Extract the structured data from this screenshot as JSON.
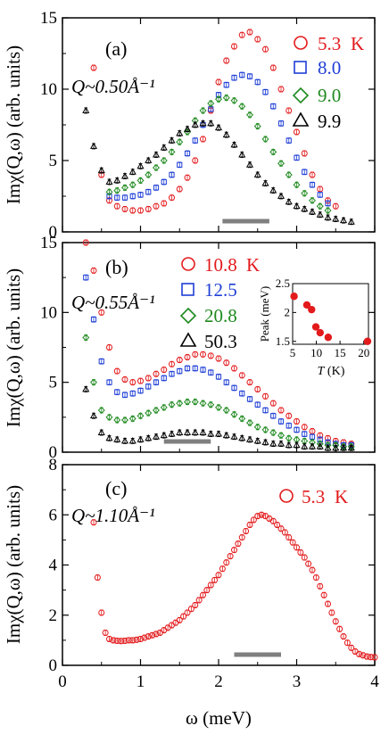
{
  "colors": {
    "red": "#e31a1c",
    "blue": "#1f3fd6",
    "green": "#1f8a1f",
    "black": "#000000",
    "bar": "#7f7f7f"
  },
  "chart_data": [
    {
      "type": "scatter",
      "panel": "(a)",
      "q_label": "Q~0.50Å⁻¹",
      "ylabel": "Imχ(Q,ω) (arb. units)",
      "xlabel": "",
      "xlim": [
        0,
        4
      ],
      "ylim": [
        0,
        15
      ],
      "x_ticks": [
        0,
        1,
        2,
        3,
        4
      ],
      "y_ticks": [
        0,
        5,
        10,
        15
      ],
      "y_tick_labels": [
        "0",
        "5",
        "10",
        "15"
      ],
      "legend_placement": "top-right",
      "legend_unit": "K",
      "resolution_bar": [
        2.05,
        2.65
      ],
      "series": [
        {
          "name": "5.3",
          "marker": "circle",
          "color": "red",
          "x": [
            0.4,
            0.5,
            0.6,
            0.7,
            0.8,
            0.9,
            1.0,
            1.1,
            1.2,
            1.3,
            1.4,
            1.5,
            1.6,
            1.7,
            1.8,
            1.9,
            2.0,
            2.1,
            2.2,
            2.3,
            2.4,
            2.5,
            2.6,
            2.7,
            2.8,
            2.9,
            3.0,
            3.1,
            3.2,
            3.3,
            3.4,
            3.5
          ],
          "y": [
            11.5,
            4.0,
            2.2,
            1.8,
            1.6,
            1.5,
            1.5,
            1.6,
            1.8,
            2.0,
            2.4,
            3.0,
            3.8,
            5.0,
            6.5,
            8.5,
            10.5,
            12.0,
            13.0,
            13.8,
            14.0,
            13.5,
            12.8,
            11.5,
            10.0,
            8.5,
            7.0,
            5.5,
            4.0,
            3.0,
            2.2,
            1.8
          ]
        },
        {
          "name": "8.0",
          "marker": "square",
          "color": "blue",
          "x": [
            0.6,
            0.7,
            0.8,
            0.9,
            1.0,
            1.1,
            1.2,
            1.3,
            1.4,
            1.5,
            1.6,
            1.7,
            1.8,
            1.9,
            2.0,
            2.1,
            2.2,
            2.3,
            2.4,
            2.5,
            2.6,
            2.7,
            2.8,
            2.9,
            3.0,
            3.1,
            3.2,
            3.3,
            3.4
          ],
          "y": [
            2.5,
            2.4,
            2.4,
            2.5,
            2.6,
            2.8,
            3.1,
            3.5,
            4.0,
            4.7,
            5.5,
            6.4,
            7.5,
            8.6,
            9.6,
            10.3,
            10.8,
            11.0,
            10.9,
            10.5,
            9.8,
            8.8,
            7.6,
            6.4,
            5.2,
            4.2,
            3.3,
            2.6,
            2.0
          ]
        },
        {
          "name": "9.0",
          "marker": "diamond",
          "color": "green",
          "x": [
            0.6,
            0.7,
            0.8,
            0.9,
            1.0,
            1.1,
            1.2,
            1.3,
            1.4,
            1.5,
            1.6,
            1.7,
            1.8,
            1.9,
            2.0,
            2.1,
            2.2,
            2.3,
            2.4,
            2.5,
            2.6,
            2.7,
            2.8,
            2.9,
            3.0,
            3.1,
            3.2,
            3.3,
            3.4
          ],
          "y": [
            2.8,
            2.9,
            3.1,
            3.3,
            3.6,
            4.0,
            4.5,
            5.0,
            5.6,
            6.3,
            7.0,
            7.8,
            8.5,
            9.0,
            9.3,
            9.4,
            9.2,
            8.8,
            8.2,
            7.4,
            6.5,
            5.6,
            4.8,
            4.0,
            3.3,
            2.7,
            2.2,
            1.8,
            1.5
          ]
        },
        {
          "name": "9.9",
          "marker": "triangle",
          "color": "black",
          "x": [
            0.3,
            0.4,
            0.5,
            0.6,
            0.7,
            0.8,
            0.9,
            1.0,
            1.1,
            1.2,
            1.3,
            1.4,
            1.5,
            1.6,
            1.7,
            1.8,
            1.9,
            2.0,
            2.1,
            2.2,
            2.3,
            2.4,
            2.5,
            2.6,
            2.7,
            2.8,
            2.9,
            3.0,
            3.1,
            3.2,
            3.3,
            3.4,
            3.5,
            3.6,
            3.7
          ],
          "y": [
            8.5,
            6.0,
            4.3,
            3.5,
            3.6,
            3.9,
            4.2,
            4.6,
            5.0,
            5.4,
            5.9,
            6.4,
            6.9,
            7.2,
            7.5,
            7.6,
            7.6,
            7.3,
            6.8,
            6.1,
            5.4,
            4.7,
            4.0,
            3.4,
            2.9,
            2.5,
            2.1,
            1.8,
            1.6,
            1.4,
            1.2,
            1.0,
            0.9,
            0.8,
            0.7
          ]
        }
      ]
    },
    {
      "type": "scatter",
      "panel": "(b)",
      "q_label": "Q~0.55Å⁻¹",
      "ylabel": "Imχ(Q,ω) (arb. units)",
      "xlabel": "",
      "xlim": [
        0,
        4
      ],
      "ylim": [
        0,
        15
      ],
      "x_ticks": [
        0,
        1,
        2,
        3,
        4
      ],
      "y_ticks": [
        0,
        5,
        10,
        15
      ],
      "y_tick_labels": [
        "0",
        "5",
        "10",
        "15"
      ],
      "legend_placement": "top-center",
      "legend_unit": "K",
      "resolution_bar": [
        1.3,
        1.9
      ],
      "series": [
        {
          "name": "10.8",
          "marker": "circle",
          "color": "red",
          "x": [
            0.3,
            0.4,
            0.5,
            0.6,
            0.7,
            0.8,
            0.9,
            1.0,
            1.1,
            1.2,
            1.3,
            1.4,
            1.5,
            1.6,
            1.7,
            1.8,
            1.9,
            2.0,
            2.1,
            2.2,
            2.3,
            2.4,
            2.5,
            2.6,
            2.7,
            2.8,
            2.9,
            3.0,
            3.1,
            3.2,
            3.3,
            3.4,
            3.5,
            3.6,
            3.7
          ],
          "y": [
            15.0,
            13.0,
            10.0,
            7.5,
            5.8,
            5.2,
            5.0,
            5.1,
            5.3,
            5.6,
            5.9,
            6.3,
            6.6,
            6.8,
            7.0,
            7.0,
            6.9,
            6.7,
            6.4,
            6.0,
            5.5,
            5.0,
            4.5,
            4.0,
            3.5,
            3.0,
            2.6,
            2.2,
            1.8,
            1.5,
            1.2,
            1.0,
            0.8,
            0.7,
            0.6
          ]
        },
        {
          "name": "12.5",
          "marker": "square",
          "color": "blue",
          "x": [
            0.3,
            0.4,
            0.5,
            0.6,
            0.7,
            0.8,
            0.9,
            1.0,
            1.1,
            1.2,
            1.3,
            1.4,
            1.5,
            1.6,
            1.7,
            1.8,
            1.9,
            2.0,
            2.1,
            2.2,
            2.3,
            2.4,
            2.5,
            2.6,
            2.7,
            2.8,
            2.9,
            3.0,
            3.1,
            3.2,
            3.3,
            3.4,
            3.5,
            3.6,
            3.7
          ],
          "y": [
            12.5,
            9.5,
            6.5,
            5.0,
            4.3,
            4.1,
            4.2,
            4.4,
            4.7,
            5.0,
            5.3,
            5.6,
            5.8,
            6.0,
            6.0,
            5.9,
            5.7,
            5.4,
            5.0,
            4.6,
            4.2,
            3.8,
            3.4,
            3.0,
            2.6,
            2.2,
            1.9,
            1.6,
            1.3,
            1.1,
            0.9,
            0.7,
            0.6,
            0.5,
            0.5
          ]
        },
        {
          "name": "20.8",
          "marker": "diamond",
          "color": "green",
          "x": [
            0.3,
            0.4,
            0.5,
            0.6,
            0.7,
            0.8,
            0.9,
            1.0,
            1.1,
            1.2,
            1.3,
            1.4,
            1.5,
            1.6,
            1.7,
            1.8,
            1.9,
            2.0,
            2.1,
            2.2,
            2.3,
            2.4,
            2.5,
            2.6,
            2.7,
            2.8,
            2.9,
            3.0,
            3.1,
            3.2,
            3.3,
            3.4,
            3.5,
            3.6,
            3.7
          ],
          "y": [
            8.2,
            5.0,
            3.0,
            2.5,
            2.3,
            2.3,
            2.4,
            2.6,
            2.8,
            3.0,
            3.2,
            3.4,
            3.5,
            3.6,
            3.6,
            3.5,
            3.4,
            3.2,
            3.0,
            2.7,
            2.4,
            2.1,
            1.8,
            1.6,
            1.4,
            1.2,
            1.0,
            0.9,
            0.8,
            0.7,
            0.6,
            0.5,
            0.5,
            0.4,
            0.4
          ]
        },
        {
          "name": "50.3",
          "marker": "triangle",
          "color": "black",
          "x": [
            0.3,
            0.4,
            0.5,
            0.6,
            0.7,
            0.8,
            0.9,
            1.0,
            1.1,
            1.2,
            1.3,
            1.4,
            1.5,
            1.6,
            1.7,
            1.8,
            1.9,
            2.0,
            2.1,
            2.2,
            2.3,
            2.4,
            2.5,
            2.6,
            2.7,
            2.8,
            2.9,
            3.0,
            3.1,
            3.2,
            3.3,
            3.4,
            3.5,
            3.6,
            3.7
          ],
          "y": [
            4.5,
            2.6,
            1.4,
            1.0,
            0.9,
            0.8,
            0.8,
            0.9,
            1.0,
            1.1,
            1.2,
            1.3,
            1.4,
            1.4,
            1.4,
            1.4,
            1.3,
            1.3,
            1.2,
            1.1,
            1.0,
            0.9,
            0.8,
            0.7,
            0.6,
            0.6,
            0.5,
            0.5,
            0.4,
            0.4,
            0.4,
            0.3,
            0.3,
            0.3,
            0.3
          ]
        }
      ],
      "inset": {
        "type": "scatter",
        "ylabel": "Peak (meV)",
        "xlabel_italic": "T",
        "xlabel_rest": " (K)",
        "xlim": [
          5,
          21
        ],
        "ylim": [
          1.45,
          2.5
        ],
        "x_ticks": [
          5,
          10,
          15,
          20
        ],
        "y_ticks": [
          1.5,
          2,
          2.5
        ],
        "y_tick_labels": [
          "1.5",
          "2",
          "2.5"
        ],
        "color": "red",
        "x": [
          5.3,
          8.0,
          9.0,
          9.9,
          10.8,
          12.5,
          20.8
        ],
        "y": [
          2.28,
          2.13,
          2.05,
          1.75,
          1.65,
          1.57,
          1.5
        ]
      }
    },
    {
      "type": "scatter",
      "panel": "(c)",
      "q_label": "Q~1.10Å⁻¹",
      "ylabel": "Imχ(Q,ω) (arb. units)",
      "xlabel": "ω (meV)",
      "xlim": [
        0,
        4
      ],
      "ylim": [
        0,
        8
      ],
      "x_ticks": [
        0,
        1,
        2,
        3,
        4
      ],
      "x_tick_labels": [
        "0",
        "1",
        "2",
        "3",
        "4"
      ],
      "y_ticks": [
        0,
        2,
        4,
        6,
        8
      ],
      "y_tick_labels": [
        "0",
        "2",
        "4",
        "6",
        "8"
      ],
      "legend_placement": "top-right",
      "legend_unit": "K",
      "resolution_bar": [
        2.2,
        2.8
      ],
      "series": [
        {
          "name": "5.3",
          "marker": "circle",
          "color": "red",
          "x": [
            0.4,
            0.45,
            0.5,
            0.55,
            0.6,
            0.65,
            0.7,
            0.75,
            0.8,
            0.85,
            0.9,
            0.95,
            1.0,
            1.05,
            1.1,
            1.15,
            1.2,
            1.25,
            1.3,
            1.35,
            1.4,
            1.45,
            1.5,
            1.55,
            1.6,
            1.65,
            1.7,
            1.75,
            1.8,
            1.85,
            1.9,
            1.95,
            2.0,
            2.05,
            2.1,
            2.15,
            2.2,
            2.25,
            2.3,
            2.35,
            2.4,
            2.45,
            2.5,
            2.55,
            2.6,
            2.65,
            2.7,
            2.75,
            2.8,
            2.85,
            2.9,
            2.95,
            3.0,
            3.05,
            3.1,
            3.15,
            3.2,
            3.25,
            3.3,
            3.35,
            3.4,
            3.45,
            3.5,
            3.55,
            3.6,
            3.65,
            3.7,
            3.75,
            3.8,
            3.85,
            3.9,
            3.95,
            4.0
          ],
          "y": [
            5.7,
            3.5,
            2.1,
            1.3,
            1.05,
            1.0,
            0.98,
            0.97,
            0.98,
            1.0,
            1.0,
            1.02,
            1.05,
            1.1,
            1.15,
            1.2,
            1.25,
            1.3,
            1.4,
            1.5,
            1.6,
            1.7,
            1.8,
            1.95,
            2.1,
            2.25,
            2.4,
            2.6,
            2.8,
            3.0,
            3.2,
            3.4,
            3.6,
            3.85,
            4.1,
            4.35,
            4.6,
            4.85,
            5.1,
            5.35,
            5.6,
            5.8,
            5.95,
            6.0,
            5.95,
            5.85,
            5.75,
            5.6,
            5.45,
            5.3,
            5.1,
            4.9,
            4.7,
            4.5,
            4.3,
            4.05,
            3.8,
            3.5,
            3.15,
            2.8,
            2.45,
            2.1,
            1.75,
            1.45,
            1.15,
            0.9,
            0.7,
            0.55,
            0.45,
            0.4,
            0.35,
            0.33,
            0.32
          ]
        }
      ]
    }
  ]
}
